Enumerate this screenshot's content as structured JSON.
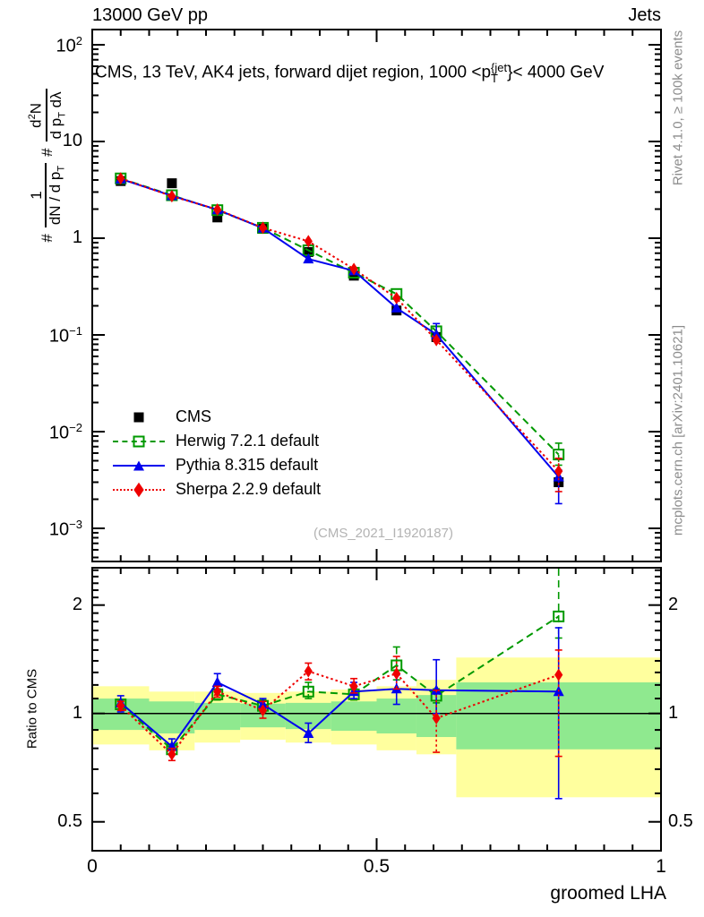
{
  "header": {
    "left": "13000 GeV pp",
    "right": "Jets"
  },
  "panel_title": {
    "prefix": "CMS, 13 TeV, AK4 jets, forward dijet region, 1000 <p",
    "sup": "{jet",
    "sub": "T",
    "suffix": "}< 4000 GeV"
  },
  "y_axis_label": {
    "hash1": "#",
    "frac1_num": "1",
    "frac1_den": "dN / d p",
    "frac1_den_sub": "T",
    "hash2": "#",
    "frac2_num": "d",
    "frac2_num_sup": "2",
    "frac2_num_tail": "N",
    "frac2_den": "d p",
    "frac2_den_sub": "T",
    "frac2_den_tail": " dλ"
  },
  "side_notes": {
    "top": "Rivet 4.1.0, ≥ 100k events",
    "bottom": "mcplots.cern.ch [arXiv:2401.10621]"
  },
  "watermark": "(CMS_2021_I1920187)",
  "ratio_axis_label": "Ratio to CMS",
  "x_axis_label": "groomed LHA",
  "legend": [
    {
      "label": "CMS",
      "marker": "square-filled",
      "line": "none",
      "color": "#000000"
    },
    {
      "label": "Herwig 7.2.1 default",
      "marker": "square-open",
      "line": "dashed",
      "color": "#009900"
    },
    {
      "label": "Pythia 8.315 default",
      "marker": "triangle-filled",
      "line": "solid",
      "color": "#0000ee"
    },
    {
      "label": "Sherpa 2.2.9 default",
      "marker": "diamond-filled",
      "line": "dotted",
      "color": "#ee0000"
    }
  ],
  "chart_data": {
    "type": "line",
    "title": "CMS, 13 TeV, AK4 jets, forward dijet region, 1000 <p{jet}T}< 4000 GeV",
    "xlabel": "groomed LHA",
    "xlim": [
      0,
      1
    ],
    "bin_edges": [
      0,
      0.1,
      0.18,
      0.26,
      0.34,
      0.42,
      0.5,
      0.57,
      0.64,
      1.0
    ],
    "x": [
      0.05,
      0.14,
      0.22,
      0.3,
      0.38,
      0.46,
      0.535,
      0.605,
      0.82
    ],
    "colors": {
      "cms": "#000000",
      "herwig": "#009900",
      "pythia": "#0000ee",
      "sherpa": "#ee0000",
      "band_yellow": "#ffff9e",
      "band_green": "#8fe98f"
    },
    "main_panel": {
      "yscale": "log",
      "ylim": [
        0.00045,
        145
      ],
      "ylabel": "# 1/(dN / d pT) # d2N/(d pT dλ)",
      "y_ticks": [
        {
          "base": "10",
          "exp": "2",
          "value": 100
        },
        {
          "base": "10",
          "exp": "",
          "value": 10
        },
        {
          "base": "1",
          "exp": "",
          "value": 1
        },
        {
          "base": "10",
          "exp": "−1",
          "value": 0.1
        },
        {
          "base": "10",
          "exp": "−2",
          "value": 0.01
        },
        {
          "base": "10",
          "exp": "−3",
          "value": 0.001
        }
      ],
      "series": [
        {
          "name": "CMS",
          "color": "#000000",
          "marker": "square-filled",
          "line": "none",
          "values": [
            3.9,
            3.7,
            1.64,
            1.25,
            0.72,
            0.41,
            0.179,
            0.095,
            0.003
          ],
          "err_lo": [
            null,
            null,
            null,
            null,
            null,
            null,
            null,
            null,
            null
          ],
          "err_hi": [
            null,
            null,
            null,
            null,
            null,
            null,
            null,
            null,
            null
          ]
        },
        {
          "name": "Herwig 7.2.1 default",
          "color": "#009900",
          "marker": "square-open",
          "line": "dashed",
          "values": [
            4.15,
            2.78,
            1.95,
            1.28,
            0.75,
            0.44,
            0.265,
            0.109,
            0.0058
          ],
          "err_lo": [
            null,
            null,
            null,
            null,
            null,
            null,
            null,
            null,
            0.0045
          ],
          "err_hi": [
            null,
            null,
            null,
            null,
            null,
            null,
            null,
            null,
            0.0076
          ]
        },
        {
          "name": "Pythia 8.315 default",
          "color": "#0000ee",
          "marker": "triangle-filled",
          "line": "solid",
          "values": [
            4.1,
            2.75,
            1.97,
            1.27,
            0.61,
            0.46,
            0.19,
            0.101,
            0.0034
          ],
          "err_lo": [
            null,
            null,
            null,
            null,
            null,
            null,
            null,
            0.09,
            0.0018
          ],
          "err_hi": [
            null,
            null,
            null,
            null,
            null,
            null,
            null,
            0.131,
            0.004
          ]
        },
        {
          "name": "Sherpa 2.2.9 default",
          "color": "#ee0000",
          "marker": "diamond-filled",
          "line": "dotted",
          "values": [
            4.15,
            2.72,
            1.98,
            1.28,
            0.93,
            0.48,
            0.24,
            0.0885,
            0.0039
          ],
          "err_lo": [
            null,
            null,
            null,
            null,
            null,
            null,
            null,
            null,
            0.0024
          ],
          "err_hi": [
            null,
            null,
            null,
            null,
            null,
            null,
            null,
            null,
            0.0053
          ]
        }
      ]
    },
    "ratio_panel": {
      "yscale": "log",
      "ylim": [
        0.42,
        2.57
      ],
      "ylabel": "Ratio to CMS",
      "ref_line": 1,
      "y_ticks": [
        {
          "label": "2",
          "value": 2
        },
        {
          "label": "1",
          "value": 1
        },
        {
          "label": "0.5",
          "value": 0.5
        }
      ],
      "x_ticks": [
        {
          "label": "0",
          "value": 0
        },
        {
          "label": "0.5",
          "value": 0.5
        },
        {
          "label": "1",
          "value": 1
        }
      ],
      "bands": {
        "yellow_lo": [
          0.82,
          0.79,
          0.83,
          0.845,
          0.83,
          0.82,
          0.79,
          0.77,
          0.585
        ],
        "yellow_hi": [
          1.19,
          1.15,
          1.15,
          1.14,
          1.15,
          1.165,
          1.19,
          1.24,
          1.43
        ],
        "green_lo": [
          0.9,
          0.88,
          0.9,
          0.915,
          0.905,
          0.895,
          0.88,
          0.86,
          0.795
        ],
        "green_hi": [
          1.1,
          1.08,
          1.07,
          1.065,
          1.07,
          1.08,
          1.1,
          1.125,
          1.22
        ]
      },
      "series": [
        {
          "name": "Herwig 7.2.1 default",
          "color": "#009900",
          "marker": "square-open",
          "line": "dashed",
          "values": [
            1.06,
            0.795,
            1.13,
            1.05,
            1.15,
            1.13,
            1.36,
            1.12,
            1.86
          ],
          "err_lo": [
            1.03,
            0.77,
            1.09,
            1.01,
            1.1,
            1.09,
            1.24,
            1.07,
            1.62
          ],
          "err_hi": [
            1.09,
            0.82,
            1.17,
            1.09,
            1.22,
            1.17,
            1.53,
            1.17,
            2.55
          ]
        },
        {
          "name": "Pythia 8.315 default",
          "color": "#0000ee",
          "marker": "triangle-filled",
          "line": "solid",
          "values": [
            1.07,
            0.81,
            1.22,
            1.06,
            0.88,
            1.15,
            1.17,
            1.16,
            1.15
          ],
          "err_lo": [
            1.01,
            0.77,
            1.16,
            1.02,
            0.83,
            1.1,
            1.06,
            1.0,
            0.58
          ],
          "err_hi": [
            1.12,
            0.85,
            1.29,
            1.1,
            0.94,
            1.22,
            1.28,
            1.41,
            1.73
          ]
        },
        {
          "name": "Sherpa 2.2.9 default",
          "color": "#ee0000",
          "marker": "diamond-filled",
          "line": "dotted",
          "values": [
            1.05,
            0.77,
            1.15,
            1.02,
            1.31,
            1.19,
            1.29,
            0.97,
            1.28
          ],
          "err_lo": [
            1.02,
            0.74,
            1.11,
            0.97,
            1.24,
            1.14,
            1.17,
            0.78,
            0.76
          ],
          "err_hi": [
            1.08,
            0.8,
            1.19,
            1.08,
            1.38,
            1.25,
            1.44,
            1.16,
            1.5
          ]
        }
      ]
    }
  }
}
